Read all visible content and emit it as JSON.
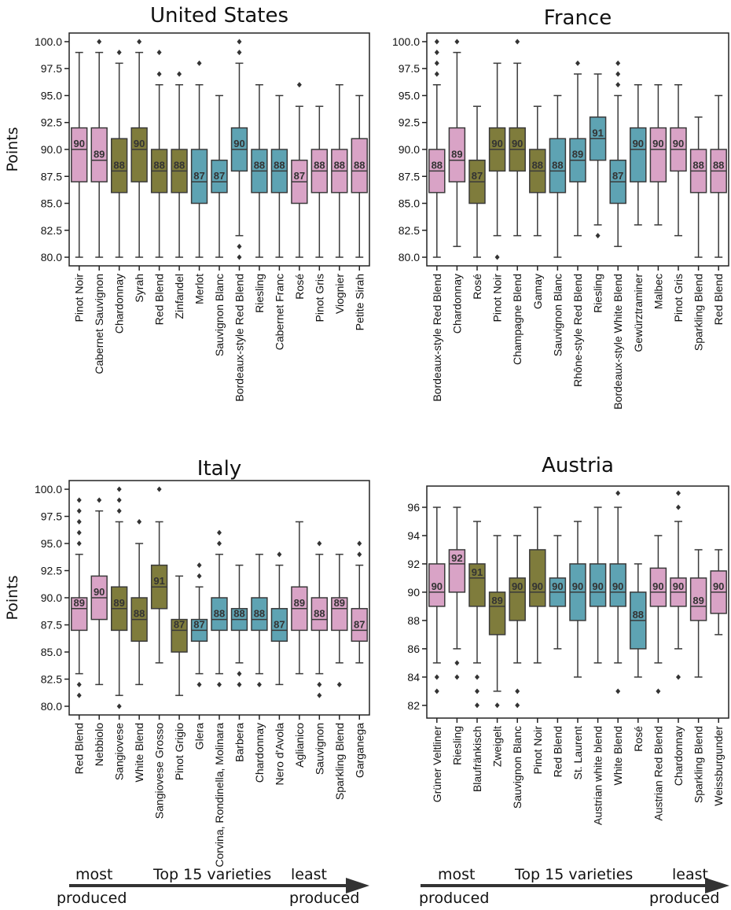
{
  "colors": {
    "pink": "#d9a3c6",
    "olive": "#7f7c3c",
    "teal": "#5ea3b3",
    "line": "#3a3a3a"
  },
  "ylabel": "Points",
  "footer_left": {
    "most": "most",
    "top": "Top 15 varieties",
    "least": "least",
    "produced_l": "produced",
    "produced_r": "produced"
  },
  "footer_right": {
    "most": "most",
    "top": "Top 15 varieties",
    "least": "least",
    "produced_l": "produced",
    "produced_r": "produced"
  },
  "chart_data": [
    {
      "type": "box",
      "title": "United States",
      "ylabel": "Points",
      "yticks": [
        "80.0",
        "82.5",
        "85.0",
        "87.5",
        "90.0",
        "92.5",
        "95.0",
        "97.5",
        "100.0"
      ],
      "ylim": [
        79.2,
        100.8
      ],
      "categories": [
        "Pinot Noir",
        "Cabernet Sauvignon",
        "Chardonnay",
        "Syrah",
        "Red Blend",
        "Zinfandel",
        "Merlot",
        "Sauvignon Blanc",
        "Bordeaux-style Red Blend",
        "Riesling",
        "Cabernet Franc",
        "Rosé",
        "Pinot Gris",
        "Viognier",
        "Petite Sirah"
      ],
      "colors": [
        "pink",
        "pink",
        "olive",
        "olive",
        "olive",
        "olive",
        "teal",
        "teal",
        "teal",
        "teal",
        "teal",
        "pink",
        "pink",
        "pink",
        "pink"
      ],
      "boxes": [
        {
          "min": 80,
          "q1": 87,
          "median": 90,
          "q3": 92,
          "max": 99,
          "outliers": []
        },
        {
          "min": 80,
          "q1": 87,
          "median": 89,
          "q3": 92,
          "max": 99,
          "outliers": [
            100
          ]
        },
        {
          "min": 80,
          "q1": 86,
          "median": 88,
          "q3": 91,
          "max": 98,
          "outliers": [
            99
          ]
        },
        {
          "min": 80,
          "q1": 87,
          "median": 90,
          "q3": 92,
          "max": 99,
          "outliers": [
            100
          ]
        },
        {
          "min": 80,
          "q1": 86,
          "median": 88,
          "q3": 90,
          "max": 96,
          "outliers": [
            97,
            99
          ]
        },
        {
          "min": 80,
          "q1": 86,
          "median": 88,
          "q3": 90,
          "max": 96,
          "outliers": [
            97
          ]
        },
        {
          "min": 80,
          "q1": 85,
          "median": 87,
          "q3": 90,
          "max": 96,
          "outliers": [
            98
          ]
        },
        {
          "min": 80,
          "q1": 86,
          "median": 87,
          "q3": 89,
          "max": 95,
          "outliers": []
        },
        {
          "min": 82,
          "q1": 88,
          "median": 90,
          "q3": 92,
          "max": 98,
          "outliers": [
            81,
            80,
            99,
            100
          ]
        },
        {
          "min": 80,
          "q1": 86,
          "median": 88,
          "q3": 90,
          "max": 96,
          "outliers": []
        },
        {
          "min": 80,
          "q1": 86,
          "median": 88,
          "q3": 90,
          "max": 95,
          "outliers": []
        },
        {
          "min": 80,
          "q1": 85,
          "median": 87,
          "q3": 89,
          "max": 94,
          "outliers": [
            96
          ]
        },
        {
          "min": 80,
          "q1": 86,
          "median": 88,
          "q3": 90,
          "max": 94,
          "outliers": []
        },
        {
          "min": 80,
          "q1": 86,
          "median": 88,
          "q3": 90,
          "max": 96,
          "outliers": []
        },
        {
          "min": 80,
          "q1": 86,
          "median": 88,
          "q3": 91,
          "max": 95,
          "outliers": []
        }
      ],
      "median_labels": [
        "90",
        "89",
        "88",
        "90",
        "88",
        "88",
        "87",
        "87",
        "90",
        "88",
        "88",
        "87",
        "88",
        "88",
        "88"
      ]
    },
    {
      "type": "box",
      "title": "France",
      "ylabel": "",
      "yticks": [
        "80.0",
        "82.5",
        "85.0",
        "87.5",
        "90.0",
        "92.5",
        "95.0",
        "97.5",
        "100.0"
      ],
      "ylim": [
        79.2,
        100.8
      ],
      "categories": [
        "Bordeaux-style Red Blend",
        "Chardonnay",
        "Rosé",
        "Pinot Noir",
        "Champagne Blend",
        "Gamay",
        "Sauvignon Blanc",
        "Rhône-style Red Blend",
        "Riesling",
        "Bordeaux-style White Blend",
        "Gewürztraminer",
        "Malbec",
        "Pinot Gris",
        "Sparkling Blend",
        "Red Blend"
      ],
      "colors": [
        "pink",
        "pink",
        "olive",
        "olive",
        "olive",
        "olive",
        "teal",
        "teal",
        "teal",
        "teal",
        "teal",
        "pink",
        "pink",
        "pink",
        "pink"
      ],
      "boxes": [
        {
          "min": 80,
          "q1": 86,
          "median": 88,
          "q3": 90,
          "max": 96,
          "outliers": [
            97,
            98,
            99,
            100
          ]
        },
        {
          "min": 81,
          "q1": 87,
          "median": 89,
          "q3": 92,
          "max": 99,
          "outliers": [
            100
          ]
        },
        {
          "min": 80,
          "q1": 85,
          "median": 87,
          "q3": 89,
          "max": 94,
          "outliers": []
        },
        {
          "min": 82,
          "q1": 88,
          "median": 90,
          "q3": 92,
          "max": 98,
          "outliers": [
            80
          ]
        },
        {
          "min": 82,
          "q1": 88,
          "median": 90,
          "q3": 92,
          "max": 98,
          "outliers": [
            100
          ]
        },
        {
          "min": 82,
          "q1": 86,
          "median": 88,
          "q3": 90,
          "max": 94,
          "outliers": []
        },
        {
          "min": 80,
          "q1": 86,
          "median": 88,
          "q3": 91,
          "max": 95,
          "outliers": []
        },
        {
          "min": 82,
          "q1": 87,
          "median": 89,
          "q3": 91,
          "max": 97,
          "outliers": [
            98
          ]
        },
        {
          "min": 83,
          "q1": 89,
          "median": 91,
          "q3": 93,
          "max": 97,
          "outliers": [
            82
          ]
        },
        {
          "min": 81,
          "q1": 85,
          "median": 87,
          "q3": 89,
          "max": 95,
          "outliers": [
            96,
            97,
            98
          ]
        },
        {
          "min": 83,
          "q1": 87,
          "median": 90,
          "q3": 92,
          "max": 96,
          "outliers": []
        },
        {
          "min": 83,
          "q1": 87,
          "median": 90,
          "q3": 92,
          "max": 96,
          "outliers": []
        },
        {
          "min": 82,
          "q1": 88,
          "median": 90,
          "q3": 92,
          "max": 96,
          "outliers": []
        },
        {
          "min": 80,
          "q1": 86,
          "median": 88,
          "q3": 90,
          "max": 93,
          "outliers": []
        },
        {
          "min": 80,
          "q1": 86,
          "median": 88,
          "q3": 90,
          "max": 95,
          "outliers": []
        }
      ],
      "median_labels": [
        "88",
        "89",
        "87",
        "90",
        "90",
        "88",
        "88",
        "89",
        "91",
        "87",
        "90",
        "90",
        "90",
        "88",
        "88"
      ]
    },
    {
      "type": "box",
      "title": "Italy",
      "ylabel": "Points",
      "yticks": [
        "80.0",
        "82.5",
        "85.0",
        "87.5",
        "90.0",
        "92.5",
        "95.0",
        "97.5",
        "100.0"
      ],
      "ylim": [
        79.2,
        100.8
      ],
      "categories": [
        "Red Blend",
        "Nebbiolo",
        "Sangiovese",
        "White Blend",
        "Sangiovese Grosso",
        "Pinot Grigio",
        "Glera",
        "Corvina, Rondinella, Molinara",
        "Barbera",
        "Chardonnay",
        "Nero d'Avola",
        "Aglianico",
        "Sauvignon",
        "Sparkling Blend",
        "Garganega"
      ],
      "colors": [
        "pink",
        "pink",
        "olive",
        "olive",
        "olive",
        "olive",
        "teal",
        "teal",
        "teal",
        "teal",
        "teal",
        "pink",
        "pink",
        "pink",
        "pink"
      ],
      "boxes": [
        {
          "min": 83,
          "q1": 87,
          "median": 89,
          "q3": 90,
          "max": 94,
          "outliers": [
            82,
            81,
            95,
            96,
            97,
            98,
            99
          ]
        },
        {
          "min": 82,
          "q1": 88,
          "median": 90,
          "q3": 92,
          "max": 98,
          "outliers": [
            99
          ]
        },
        {
          "min": 81,
          "q1": 87,
          "median": 89,
          "q3": 91,
          "max": 97,
          "outliers": [
            80,
            98,
            99,
            100
          ]
        },
        {
          "min": 82,
          "q1": 86,
          "median": 88,
          "q3": 90,
          "max": 95,
          "outliers": [
            97
          ]
        },
        {
          "min": 84,
          "q1": 89,
          "median": 91,
          "q3": 93,
          "max": 97,
          "outliers": [
            100
          ]
        },
        {
          "min": 81,
          "q1": 85,
          "median": 87,
          "q3": 88,
          "max": 92,
          "outliers": []
        },
        {
          "min": 83,
          "q1": 86,
          "median": 87,
          "q3": 88,
          "max": 91,
          "outliers": [
            82,
            92,
            93
          ]
        },
        {
          "min": 83,
          "q1": 87,
          "median": 88,
          "q3": 90,
          "max": 94,
          "outliers": [
            82,
            95,
            96
          ]
        },
        {
          "min": 84,
          "q1": 87,
          "median": 88,
          "q3": 89,
          "max": 93,
          "outliers": [
            83,
            82
          ]
        },
        {
          "min": 83,
          "q1": 87,
          "median": 88,
          "q3": 90,
          "max": 94,
          "outliers": [
            82
          ]
        },
        {
          "min": 82,
          "q1": 86,
          "median": 87,
          "q3": 89,
          "max": 93,
          "outliers": [
            94
          ]
        },
        {
          "min": 83,
          "q1": 87,
          "median": 89,
          "q3": 91,
          "max": 97,
          "outliers": []
        },
        {
          "min": 83,
          "q1": 87,
          "median": 88,
          "q3": 90,
          "max": 94,
          "outliers": [
            82,
            81,
            95
          ]
        },
        {
          "min": 84,
          "q1": 87,
          "median": 89,
          "q3": 90,
          "max": 94,
          "outliers": [
            82
          ]
        },
        {
          "min": 84,
          "q1": 86,
          "median": 87,
          "q3": 89,
          "max": 93,
          "outliers": [
            94,
            95
          ]
        }
      ],
      "median_labels": [
        "89",
        "90",
        "89",
        "88",
        "91",
        "87",
        "87",
        "88",
        "88",
        "88",
        "87",
        "89",
        "88",
        "89",
        "87"
      ]
    },
    {
      "type": "box",
      "title": "Austria",
      "ylabel": "",
      "yticks": [
        "82",
        "84",
        "86",
        "88",
        "90",
        "92",
        "94",
        "96"
      ],
      "ylim": [
        81.1,
        97.5
      ],
      "categories": [
        "Grüner Veltliner",
        "Riesling",
        "Blaufränkisch",
        "Zweigelt",
        "Sauvignon Blanc",
        "Pinot Noir",
        "Red Blend",
        "St. Laurent",
        "Austrian white blend",
        "White Blend",
        "Rosé",
        "Austrian Red Blend",
        "Chardonnay",
        "Sparkling Blend",
        "Weissburgunder"
      ],
      "colors": [
        "pink",
        "pink",
        "olive",
        "olive",
        "olive",
        "olive",
        "teal",
        "teal",
        "teal",
        "teal",
        "teal",
        "pink",
        "pink",
        "pink",
        "pink"
      ],
      "boxes": [
        {
          "min": 85,
          "q1": 89,
          "median": 90,
          "q3": 92,
          "max": 96,
          "outliers": [
            84,
            83
          ]
        },
        {
          "min": 86,
          "q1": 90,
          "median": 92,
          "q3": 93,
          "max": 96,
          "outliers": [
            85,
            84
          ]
        },
        {
          "min": 85,
          "q1": 89,
          "median": 91,
          "q3": 92,
          "max": 95,
          "outliers": [
            84,
            83,
            82
          ]
        },
        {
          "min": 83,
          "q1": 87,
          "median": 89,
          "q3": 90,
          "max": 94,
          "outliers": [
            82
          ]
        },
        {
          "min": 85,
          "q1": 88,
          "median": 90,
          "q3": 91,
          "max": 94,
          "outliers": [
            83,
            82
          ]
        },
        {
          "min": 85,
          "q1": 89,
          "median": 90,
          "q3": 93,
          "max": 96,
          "outliers": []
        },
        {
          "min": 86,
          "q1": 89,
          "median": 90,
          "q3": 91,
          "max": 94,
          "outliers": []
        },
        {
          "min": 84,
          "q1": 88,
          "median": 90,
          "q3": 92,
          "max": 95,
          "outliers": []
        },
        {
          "min": 85,
          "q1": 89,
          "median": 90,
          "q3": 92,
          "max": 96,
          "outliers": []
        },
        {
          "min": 85,
          "q1": 89,
          "median": 90,
          "q3": 92,
          "max": 96,
          "outliers": [
            83,
            97
          ]
        },
        {
          "min": 84,
          "q1": 86,
          "median": 88,
          "q3": 90,
          "max": 92,
          "outliers": []
        },
        {
          "min": 85,
          "q1": 89,
          "median": 90,
          "q3": 91.7,
          "max": 94,
          "outliers": [
            83
          ]
        },
        {
          "min": 86,
          "q1": 89,
          "median": 90,
          "q3": 91,
          "max": 95,
          "outliers": [
            84,
            96,
            97
          ]
        },
        {
          "min": 84,
          "q1": 88,
          "median": 89,
          "q3": 91,
          "max": 93,
          "outliers": []
        },
        {
          "min": 87,
          "q1": 88.5,
          "median": 90,
          "q3": 91.5,
          "max": 93,
          "outliers": []
        }
      ],
      "median_labels": [
        "90",
        "92",
        "91",
        "89",
        "90",
        "90",
        "90",
        "90",
        "90",
        "90",
        "88",
        "90",
        "90",
        "89",
        "90"
      ]
    }
  ]
}
